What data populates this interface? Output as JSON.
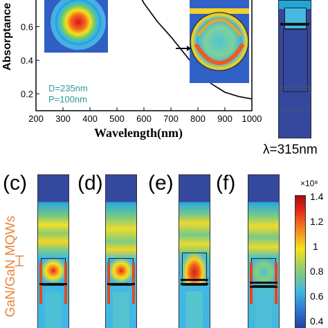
{
  "chart_data": {
    "type": "line",
    "xlabel": "Wavelength(nm)",
    "ylabel": "Absorptance",
    "xlim": [
      200,
      1000
    ],
    "ylim": [
      0.1,
      0.8
    ],
    "x_ticks": [
      "200",
      "300",
      "400",
      "500",
      "600",
      "700",
      "800",
      "900",
      "1000"
    ],
    "y_ticks": [
      "0.2",
      "0.4",
      "0.6"
    ],
    "annotation_lines": [
      "D=235nm",
      "P=100nm"
    ],
    "series": [
      {
        "x": [
          560,
          600,
          650,
          700,
          750,
          800,
          850,
          900,
          950,
          1000
        ],
        "y": [
          0.86,
          0.74,
          0.63,
          0.54,
          0.44,
          0.34,
          0.26,
          0.21,
          0.185,
          0.17
        ]
      }
    ]
  },
  "wavelength_caption": "λ=315nm",
  "panels": [
    {
      "label": "(c)"
    },
    {
      "label": "(d)"
    },
    {
      "label": "(e)"
    },
    {
      "label": "(f)"
    }
  ],
  "side_label": "GaN/GaN MQWs",
  "colorbar": {
    "exponent": "×10⁸",
    "ticks": [
      "1.4",
      "1.2",
      "1",
      "0.8",
      "0.6",
      "0.4"
    ]
  },
  "colors": {
    "curve": "#111111",
    "side_label": "#e8843a",
    "field_blue": "#2a3f9a"
  }
}
